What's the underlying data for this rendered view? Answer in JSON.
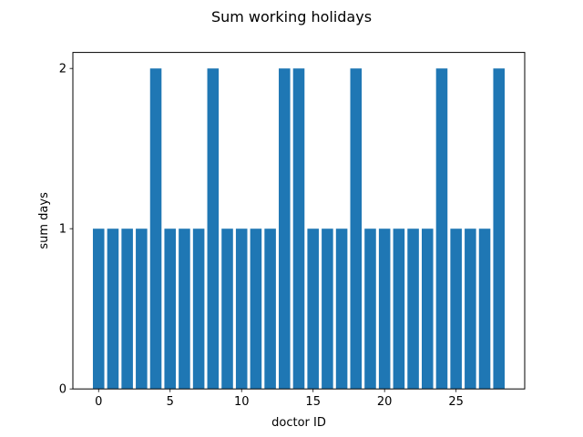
{
  "chart_data": {
    "type": "bar",
    "title": "Sum working holidays",
    "xlabel": "doctor ID",
    "ylabel": "sum days",
    "x": [
      0,
      1,
      2,
      3,
      4,
      5,
      6,
      7,
      8,
      9,
      10,
      11,
      12,
      13,
      14,
      15,
      16,
      17,
      18,
      19,
      20,
      21,
      22,
      23,
      24,
      25,
      26,
      27,
      28
    ],
    "values": [
      1,
      1,
      1,
      1,
      2,
      1,
      1,
      1,
      2,
      1,
      1,
      1,
      1,
      2,
      2,
      1,
      1,
      1,
      2,
      1,
      1,
      1,
      1,
      1,
      2,
      1,
      1,
      1,
      2
    ],
    "xlim": [
      -1.8,
      29.8
    ],
    "ylim": [
      0,
      2
    ],
    "xticks": [
      "0",
      "5",
      "10",
      "15",
      "20",
      "25"
    ],
    "yticks": [
      "0",
      "1",
      "2"
    ],
    "grid": false,
    "bar_color": "#1f77b4"
  }
}
